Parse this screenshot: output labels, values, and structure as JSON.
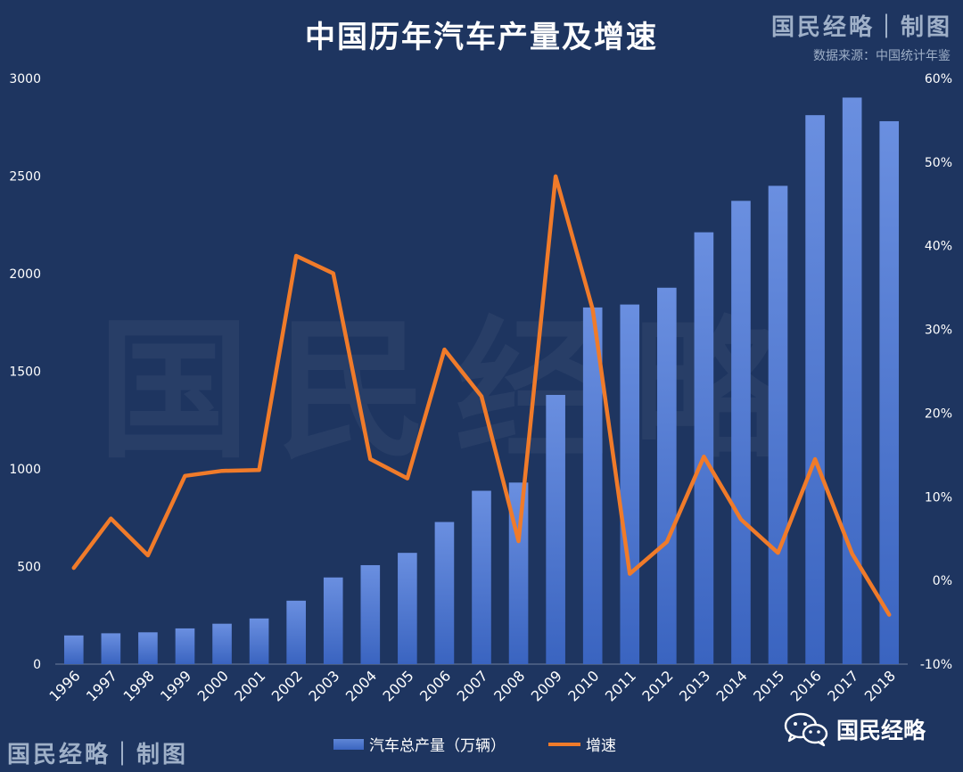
{
  "header": {
    "title": "中国历年汽车产量及增速",
    "brand": "国民经略｜制图",
    "source": "数据来源：中国统计年鉴"
  },
  "footer": {
    "brand": "国民经略｜制图",
    "wechat_account": "国民经略"
  },
  "watermark": "国民经略",
  "icons": {
    "wechat": "wechat-icon"
  },
  "colors": {
    "background": "#1e3560",
    "bar": "#4a72cf",
    "line": "#f07b2a",
    "text": "#ffffff",
    "muted": "#9fb0c8"
  },
  "chart_data": {
    "type": "bar",
    "title": "中国历年汽车产量及增速",
    "categories": [
      "1996",
      "1997",
      "1998",
      "1999",
      "2000",
      "2001",
      "2002",
      "2003",
      "2004",
      "2005",
      "2006",
      "2007",
      "2008",
      "2009",
      "2010",
      "2011",
      "2012",
      "2013",
      "2014",
      "2015",
      "2016",
      "2017",
      "2018"
    ],
    "series": [
      {
        "name": "汽车总产量（万辆）",
        "type": "bar",
        "axis": "left",
        "values": [
          147,
          158,
          163,
          183,
          207,
          234,
          325,
          444,
          507,
          570,
          728,
          888,
          930,
          1379,
          1827,
          1842,
          1928,
          2212,
          2373,
          2450,
          2812,
          2902,
          2781
        ]
      },
      {
        "name": "增速",
        "type": "line",
        "axis": "right",
        "values": [
          1.5,
          7.4,
          3.0,
          12.5,
          13.1,
          13.2,
          38.8,
          36.7,
          14.5,
          12.2,
          27.6,
          22.0,
          4.7,
          48.3,
          32.4,
          0.8,
          4.6,
          14.8,
          7.3,
          3.3,
          14.5,
          3.2,
          -4.1
        ]
      }
    ],
    "y_left": {
      "min": 0,
      "max": 3000,
      "ticks": [
        "0",
        "500",
        "1000",
        "1500",
        "2000",
        "2500",
        "3000"
      ]
    },
    "y_right": {
      "min": -10,
      "max": 60,
      "ticks": [
        "-10%",
        "0%",
        "10%",
        "20%",
        "30%",
        "40%",
        "50%",
        "60%"
      ]
    },
    "grid": false,
    "legend": "bottom",
    "legend_items": [
      "汽车总产量（万辆）",
      "增速"
    ]
  }
}
